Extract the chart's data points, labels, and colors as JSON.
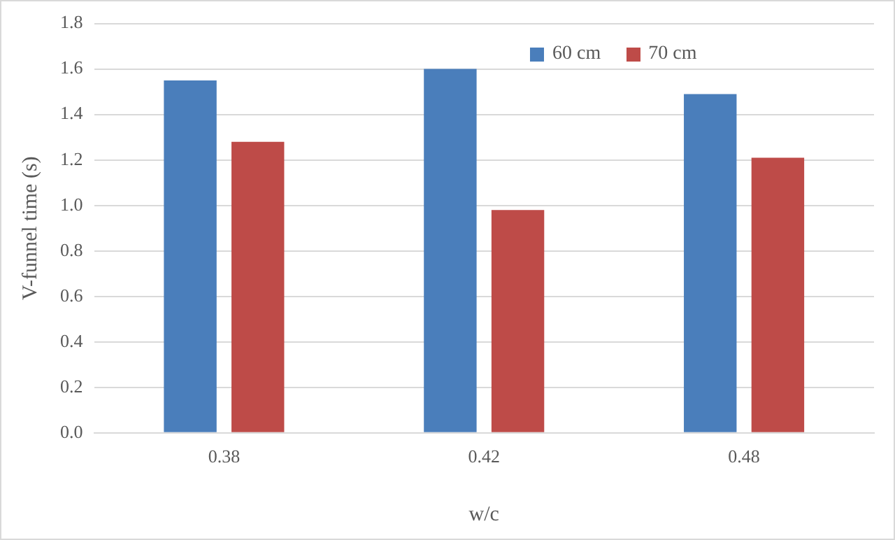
{
  "chart_data": {
    "type": "bar",
    "xlabel": "w/c",
    "ylabel": "V-funnel time (s)",
    "categories": [
      "0.38",
      "0.42",
      "0.48"
    ],
    "series": [
      {
        "name": "60 cm",
        "color": "#4a7ebb",
        "values": [
          1.55,
          1.6,
          1.49
        ]
      },
      {
        "name": "70 cm",
        "color": "#be4b48",
        "values": [
          1.28,
          0.98,
          1.21
        ]
      }
    ],
    "ylim": [
      0,
      1.8
    ],
    "yticks": [
      {
        "value": 0,
        "label": "0.0"
      },
      {
        "value": 0.2,
        "label": "0.2"
      },
      {
        "value": 0.4,
        "label": "0.4"
      },
      {
        "value": 0.6,
        "label": "0.6"
      },
      {
        "value": 0.8,
        "label": "0.8"
      },
      {
        "value": 1.0,
        "label": "1.0"
      },
      {
        "value": 1.2,
        "label": "1.2"
      },
      {
        "value": 1.4,
        "label": "1.4"
      },
      {
        "value": 1.6,
        "label": "1.6"
      },
      {
        "value": 1.8,
        "label": "1.8"
      }
    ],
    "grid": "y",
    "legend": "top right"
  }
}
